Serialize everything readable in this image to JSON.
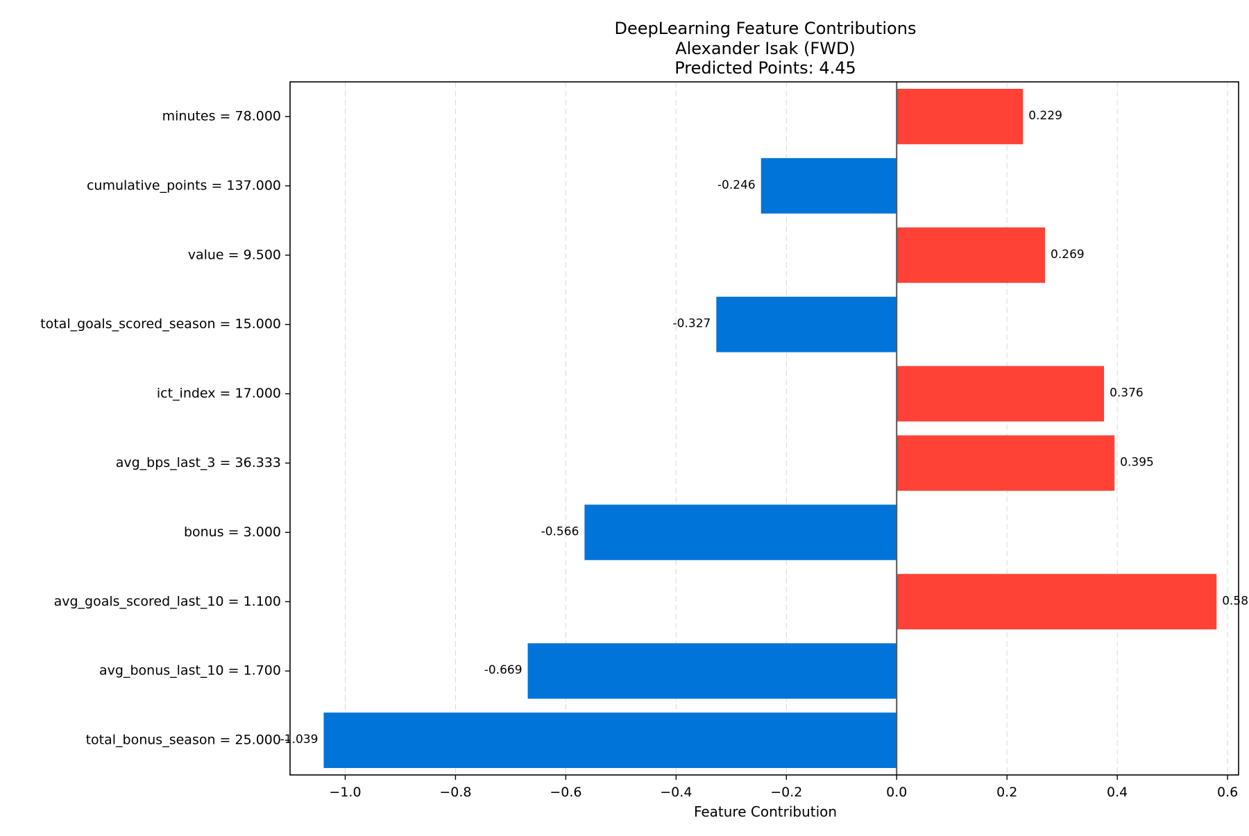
{
  "chart_data": {
    "type": "bar",
    "orientation": "horizontal",
    "title_lines": [
      "DeepLearning Feature Contributions",
      "Alexander Isak (FWD)",
      "Predicted Points: 4.45"
    ],
    "xlabel": "Feature Contribution",
    "ylabel": "",
    "xlim": [
      -1.1,
      0.62
    ],
    "x_ticks": [
      -1.0,
      -0.8,
      -0.6,
      -0.4,
      -0.2,
      0.0,
      0.2,
      0.4,
      0.6
    ],
    "x_tick_labels": [
      "−1.0",
      "−0.8",
      "−0.6",
      "−0.4",
      "−0.2",
      "0.0",
      "0.2",
      "0.4",
      "0.6"
    ],
    "grid": {
      "x": true,
      "y": false,
      "style": "dashed"
    },
    "positive_color": "#ff4136",
    "negative_color": "#0074d9",
    "zero_line_color": "#555555",
    "categories": [
      "minutes = 78.000",
      "cumulative_points = 137.000",
      "value = 9.500",
      "total_goals_scored_season = 15.000",
      "ict_index = 17.000",
      "avg_bps_last_3 = 36.333",
      "bonus = 3.000",
      "avg_goals_scored_last_10 = 1.100",
      "avg_bonus_last_10 = 1.700",
      "total_bonus_season = 25.000"
    ],
    "values": [
      0.229,
      -0.246,
      0.269,
      -0.327,
      0.376,
      0.395,
      -0.566,
      0.58,
      -0.669,
      -1.039
    ],
    "value_labels": [
      "0.229",
      "-0.246",
      "0.269",
      "-0.327",
      "0.376",
      "0.395",
      "-0.566",
      "0.580",
      "-0.669",
      "-1.039"
    ]
  }
}
